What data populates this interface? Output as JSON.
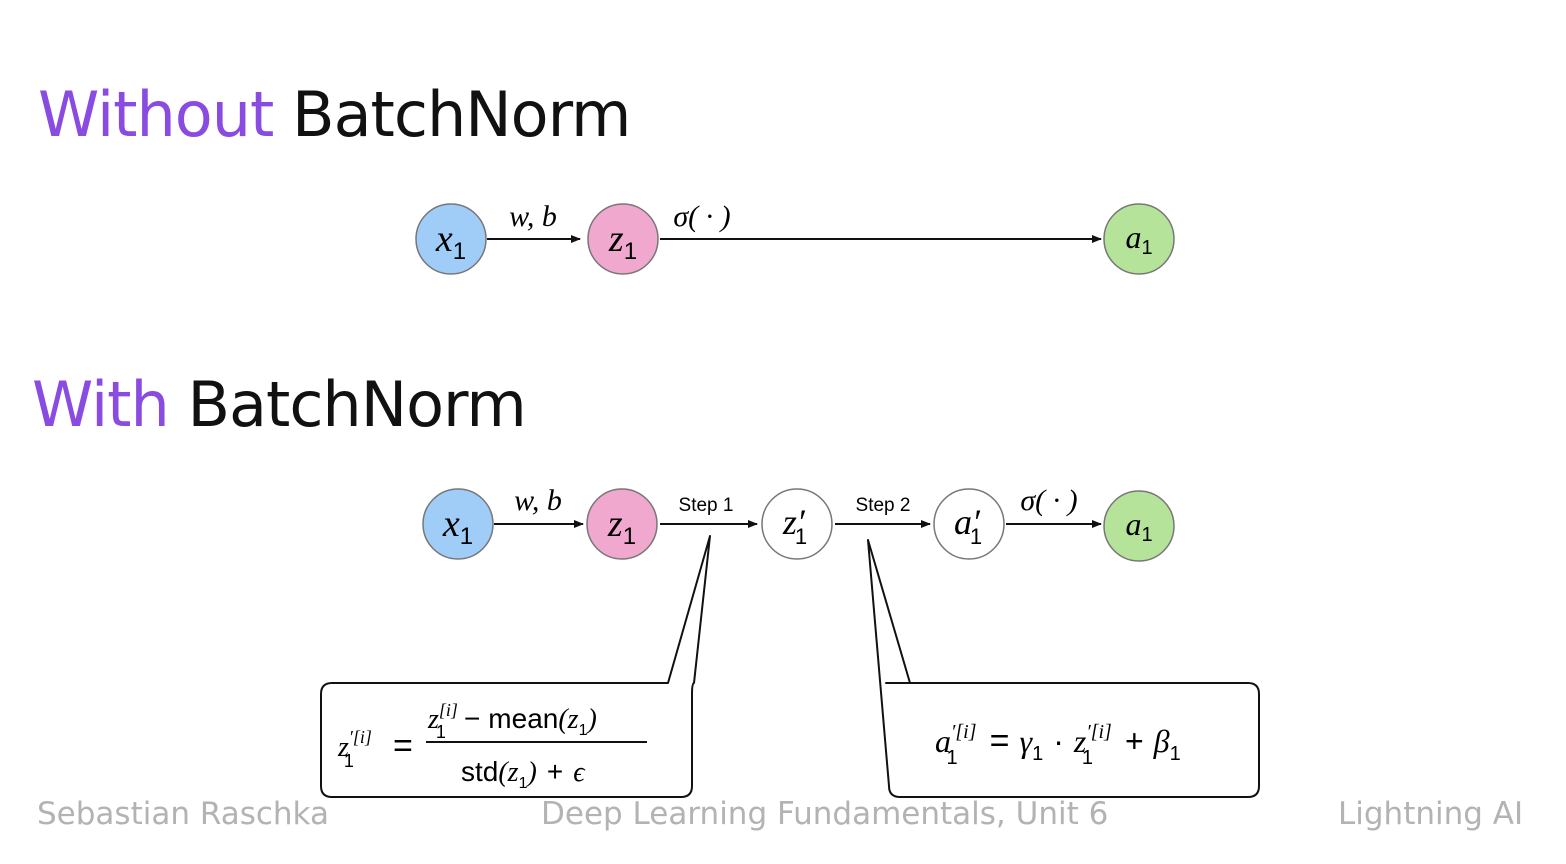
{
  "titles": {
    "without": {
      "accent": "Without",
      "rest": "BatchNorm"
    },
    "with": {
      "accent": "With",
      "rest": "BatchNorm"
    }
  },
  "diagram_top": {
    "nodes": {
      "x": "x",
      "x_sub": "1",
      "z": "z",
      "z_sub": "1",
      "a": "a",
      "a_sub": "1"
    },
    "edges": {
      "wb": "w, b",
      "sigma": "σ( · )"
    }
  },
  "diagram_bottom": {
    "nodes": {
      "x": "x",
      "x_sub": "1",
      "z": "z",
      "z_sub": "1",
      "zp": "z′",
      "zp_sub": "1",
      "ap": "a′",
      "ap_sub": "1",
      "a": "a",
      "a_sub": "1"
    },
    "edges": {
      "wb": "w, b",
      "step1": "Step 1",
      "step2": "Step 2",
      "sigma": "σ( · )"
    }
  },
  "callouts": {
    "step1": {
      "lhs": "z",
      "lhs_sub": "1",
      "lhs_sup": "′[i]",
      "equals": "=",
      "num_z": "z",
      "num_sub": "1",
      "num_sup": "[i]",
      "num_minus": "−",
      "num_mean": "mean",
      "num_arg": "(z",
      "num_arg_sub": "1",
      "num_close": ")",
      "den_std": "std",
      "den_arg": "(z",
      "den_arg_sub": "1",
      "den_close": ")",
      "den_plus": "+",
      "den_eps": "ϵ"
    },
    "step2": {
      "lhs": "a",
      "lhs_sub": "1",
      "lhs_sup": "′[i]",
      "equals": "=",
      "gamma": "γ",
      "gamma_sub": "1",
      "dot": "·",
      "z": "z",
      "z_sub": "1",
      "z_sup": "′[i]",
      "plus": "+",
      "beta": "β",
      "beta_sub": "1"
    }
  },
  "colors": {
    "accent": "#8a4be0",
    "node_x": "#9fcdf7",
    "node_z": "#f0a8cf",
    "node_a": "#b5e39a",
    "node_outline": "#777777"
  },
  "footer": {
    "author": "Sebastian Raschka",
    "course": "Deep Learning Fundamentals, Unit 6",
    "org": "Lightning AI"
  }
}
